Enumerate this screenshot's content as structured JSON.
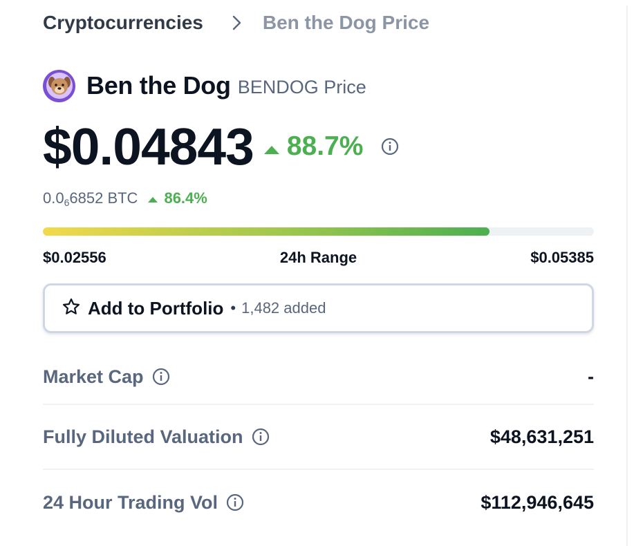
{
  "breadcrumb": {
    "parent": "Cryptocurrencies",
    "current": "Ben the Dog Price"
  },
  "coin": {
    "name": "Ben the Dog",
    "symbol_label": "BENDOG Price",
    "logo_icon": "dog-face-icon",
    "logo_color": "#7b4fd1"
  },
  "price": {
    "usd": "$0.04843",
    "change_24h": "88.7%",
    "btc_prefix": "0.0",
    "btc_zeros": "6",
    "btc_suffix": "6852 BTC",
    "btc_change": "86.4%",
    "positive_color": "#4caf50"
  },
  "range": {
    "low": "$0.02556",
    "label": "24h Range",
    "high": "$0.05385",
    "position_percent": 81
  },
  "portfolio": {
    "label": "Add to Portfolio",
    "separator": "•",
    "count": "1,482 added",
    "icon": "star-outline-icon"
  },
  "stats": [
    {
      "label": "Market Cap",
      "value": "-"
    },
    {
      "label": "Fully Diluted Valuation",
      "value": "$48,631,251"
    },
    {
      "label": "24 Hour Trading Vol",
      "value": "$112,946,645"
    }
  ]
}
